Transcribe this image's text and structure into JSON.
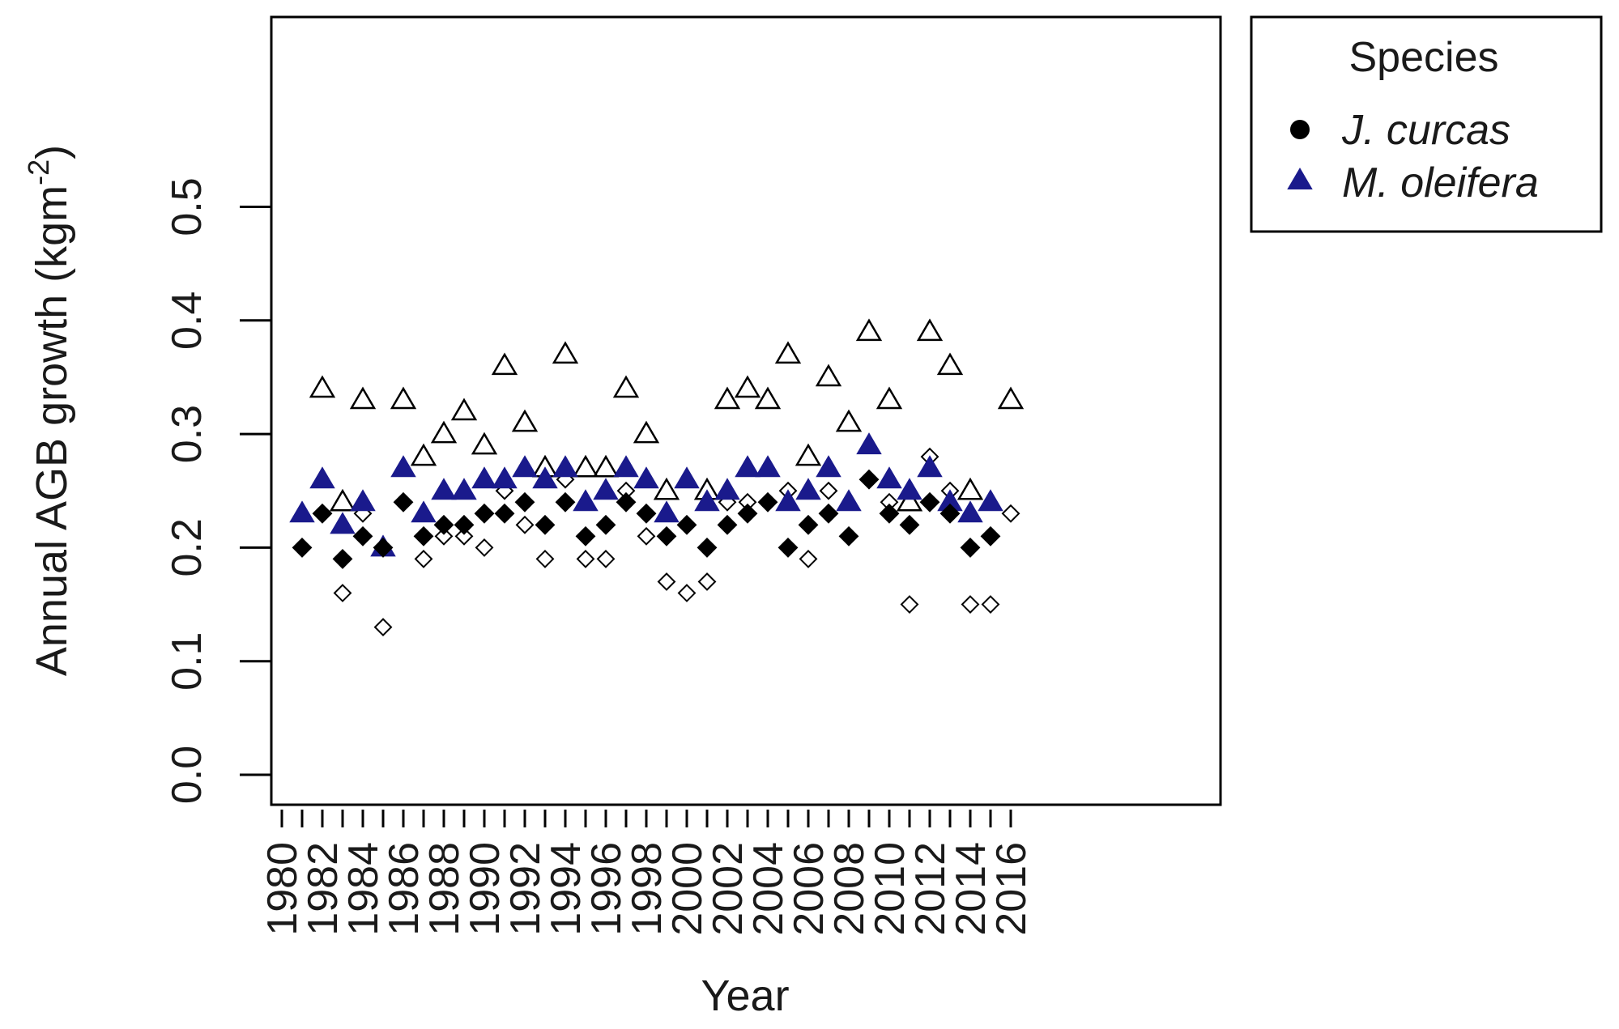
{
  "chart_data": {
    "type": "scatter",
    "title": "",
    "xlabel": "Year",
    "ylabel": "Annual AGB growth (kgm",
    "ylabel_sup": "-2",
    "ylabel_close": ")",
    "xlim": [
      1980,
      2016
    ],
    "ylim": [
      0.0,
      0.5
    ],
    "xticks": [
      "1980",
      "1982",
      "1984",
      "1986",
      "1988",
      "1990",
      "1992",
      "1994",
      "1996",
      "1998",
      "2000",
      "2002",
      "2004",
      "2006",
      "2008",
      "2010",
      "2012",
      "2014",
      "2016"
    ],
    "yticks": [
      "0.0",
      "0.1",
      "0.2",
      "0.3",
      "0.4",
      "0.5"
    ],
    "legend": {
      "title": "Species",
      "position": "outside-top-right",
      "entries": [
        {
          "label": "J. curcas",
          "marker": "circle",
          "color": "#000000"
        },
        {
          "label": "M. oleifera",
          "marker": "triangle",
          "color": "#1a1a8c"
        }
      ]
    },
    "series": [
      {
        "marker": "filled-diamond",
        "color": "#000000",
        "x": [
          1981,
          1982,
          1983,
          1984,
          1985,
          1986,
          1987,
          1988,
          1989,
          1990,
          1991,
          1992,
          1993,
          1994,
          1995,
          1996,
          1997,
          1998,
          1999,
          2000,
          2001,
          2002,
          2003,
          2004,
          2005,
          2006,
          2007,
          2008,
          2009,
          2010,
          2011,
          2012,
          2013,
          2014,
          2015
        ],
        "y": [
          0.2,
          0.23,
          0.19,
          0.21,
          0.2,
          0.24,
          0.21,
          0.22,
          0.22,
          0.23,
          0.23,
          0.24,
          0.22,
          0.24,
          0.21,
          0.22,
          0.24,
          0.23,
          0.21,
          0.22,
          0.2,
          0.22,
          0.23,
          0.24,
          0.2,
          0.22,
          0.23,
          0.21,
          0.26,
          0.23,
          0.22,
          0.24,
          0.23,
          0.2,
          0.21
        ]
      },
      {
        "marker": "open-diamond",
        "color": "#000000",
        "x": [
          1983,
          1984,
          1985,
          1987,
          1988,
          1989,
          1990,
          1991,
          1992,
          1993,
          1994,
          1995,
          1996,
          1997,
          1998,
          1999,
          2000,
          2001,
          2002,
          2003,
          2005,
          2006,
          2007,
          2010,
          2011,
          2012,
          2013,
          2014,
          2015,
          2016
        ],
        "y": [
          0.16,
          0.23,
          0.13,
          0.19,
          0.21,
          0.21,
          0.2,
          0.25,
          0.22,
          0.19,
          0.26,
          0.19,
          0.19,
          0.25,
          0.21,
          0.17,
          0.16,
          0.17,
          0.24,
          0.24,
          0.25,
          0.19,
          0.25,
          0.24,
          0.15,
          0.28,
          0.25,
          0.15,
          0.15,
          0.23
        ]
      },
      {
        "marker": "filled-triangle",
        "color": "#1a1a8c",
        "x": [
          1981,
          1982,
          1983,
          1984,
          1985,
          1986,
          1987,
          1988,
          1989,
          1990,
          1991,
          1992,
          1993,
          1994,
          1995,
          1996,
          1997,
          1998,
          1999,
          2000,
          2001,
          2002,
          2003,
          2004,
          2005,
          2006,
          2007,
          2008,
          2009,
          2010,
          2011,
          2012,
          2013,
          2014,
          2015
        ],
        "y": [
          0.23,
          0.26,
          0.22,
          0.24,
          0.2,
          0.27,
          0.23,
          0.25,
          0.25,
          0.26,
          0.26,
          0.27,
          0.26,
          0.27,
          0.24,
          0.25,
          0.27,
          0.26,
          0.23,
          0.26,
          0.24,
          0.25,
          0.27,
          0.27,
          0.24,
          0.25,
          0.27,
          0.24,
          0.29,
          0.26,
          0.25,
          0.27,
          0.24,
          0.23,
          0.24
        ]
      },
      {
        "marker": "open-triangle",
        "color": "#000000",
        "x": [
          1982,
          1983,
          1984,
          1986,
          1987,
          1988,
          1989,
          1990,
          1991,
          1992,
          1993,
          1994,
          1995,
          1996,
          1997,
          1998,
          1999,
          2001,
          2002,
          2003,
          2004,
          2005,
          2006,
          2007,
          2008,
          2009,
          2010,
          2011,
          2012,
          2013,
          2014,
          2016
        ],
        "y": [
          0.34,
          0.24,
          0.33,
          0.33,
          0.28,
          0.3,
          0.32,
          0.29,
          0.36,
          0.31,
          0.27,
          0.37,
          0.27,
          0.27,
          0.34,
          0.3,
          0.25,
          0.25,
          0.33,
          0.34,
          0.33,
          0.37,
          0.28,
          0.35,
          0.31,
          0.39,
          0.33,
          0.24,
          0.39,
          0.36,
          0.25,
          0.33
        ]
      }
    ]
  }
}
